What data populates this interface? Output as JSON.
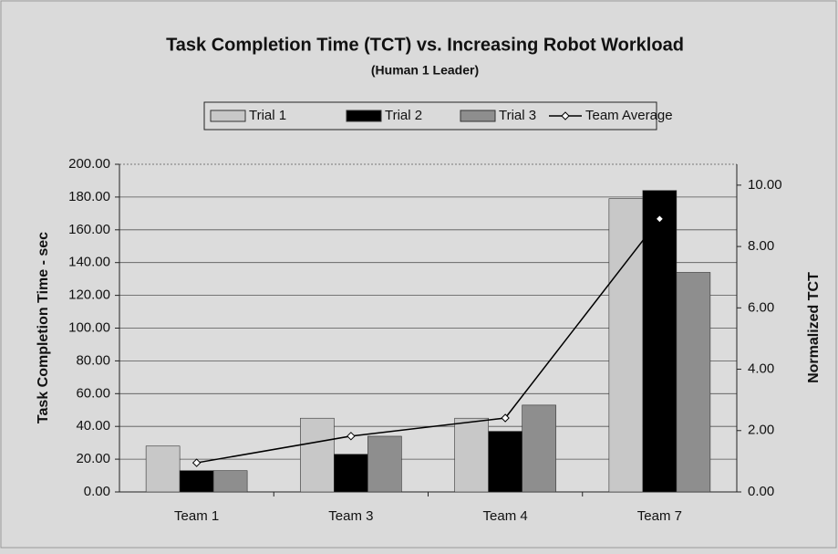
{
  "chart_data": {
    "type": "bar",
    "title": "Task Completion Time (TCT) vs. Increasing Robot Workload",
    "subtitle": "(Human 1 Leader)",
    "y_label": "Task Completion Time - sec",
    "y2_label": "Normalized TCT",
    "categories": [
      "Team 1",
      "Team 3",
      "Team 4",
      "Team 7"
    ],
    "series": [
      {
        "name": "Trial 1",
        "color": "#c8c8c8",
        "values": [
          28,
          45,
          45,
          179
        ]
      },
      {
        "name": "Trial 2",
        "color": "#000000",
        "values": [
          13,
          23,
          37,
          184
        ]
      },
      {
        "name": "Trial 3",
        "color": "#8e8e8e",
        "values": [
          13,
          34,
          53,
          134
        ]
      },
      {
        "name": "Team Average",
        "color": "#000000",
        "axis": "y2",
        "type": "line",
        "values": [
          0.95,
          1.82,
          2.41,
          8.9
        ]
      }
    ],
    "ylim": [
      0,
      200
    ],
    "yticks": [
      {
        "value": 0,
        "label": "0.00"
      },
      {
        "value": 20,
        "label": "20.00"
      },
      {
        "value": 40,
        "label": "40.00"
      },
      {
        "value": 60,
        "label": "60.00"
      },
      {
        "value": 80,
        "label": "80.00"
      },
      {
        "value": 100,
        "label": "100.00"
      },
      {
        "value": 120,
        "label": "120.00"
      },
      {
        "value": 140,
        "label": "140.00"
      },
      {
        "value": 160,
        "label": "160.00"
      },
      {
        "value": 180,
        "label": "180.00"
      },
      {
        "value": 200,
        "label": "200.00"
      }
    ],
    "y2lim": [
      0,
      10.68
    ],
    "y2ticks": [
      {
        "value": 0,
        "label": "0.00"
      },
      {
        "value": 2,
        "label": "2.00"
      },
      {
        "value": 4,
        "label": "4.00"
      },
      {
        "value": 6,
        "label": "6.00"
      },
      {
        "value": 8,
        "label": "8.00"
      },
      {
        "value": 10,
        "label": "10.00"
      }
    ],
    "grid": true,
    "legend": "top"
  }
}
